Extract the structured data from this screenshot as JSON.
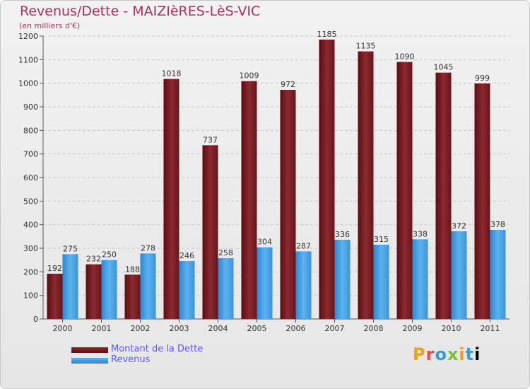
{
  "chart_data": {
    "type": "bar",
    "title": "Revenus/Dette - MAIZIèRES-LèS-VIC",
    "subtitle": "(en milliers d'€)",
    "categories": [
      "2000",
      "2001",
      "2002",
      "2003",
      "2004",
      "2005",
      "2006",
      "2007",
      "2008",
      "2009",
      "2010",
      "2011"
    ],
    "series": [
      {
        "name": "Montant de la Dette",
        "color": "#7a1a1f",
        "values": [
          192,
          232,
          188,
          1018,
          737,
          1009,
          972,
          1185,
          1135,
          1090,
          1045,
          999
        ]
      },
      {
        "name": "Revenus",
        "color": "#4aa3e6",
        "values": [
          275,
          250,
          278,
          246,
          258,
          304,
          287,
          336,
          315,
          338,
          372,
          378
        ]
      }
    ],
    "ylim": [
      0,
      1200
    ],
    "yticks": [
      0,
      100,
      200,
      300,
      400,
      500,
      600,
      700,
      800,
      900,
      1000,
      1100,
      1200
    ],
    "grid": true,
    "legend_position": "bottom-left"
  },
  "brand": "Proxiti",
  "colors": {
    "title": "#a8325a",
    "legend_text": "#5b5bff"
  }
}
